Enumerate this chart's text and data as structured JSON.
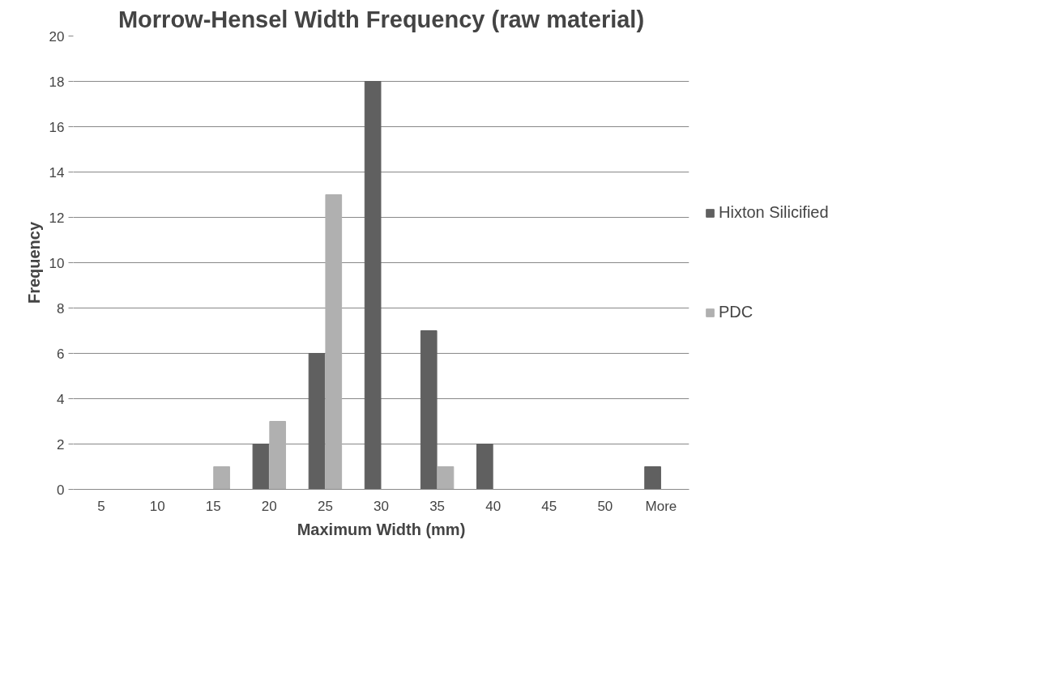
{
  "chart_data": {
    "type": "bar",
    "title": "Morrow-Hensel Width Frequency (raw material)",
    "xlabel": "Maximum Width (mm)",
    "ylabel": "Frequency",
    "categories": [
      "5",
      "10",
      "15",
      "20",
      "25",
      "30",
      "35",
      "40",
      "45",
      "50",
      "More"
    ],
    "series": [
      {
        "name": "Hixton Silicified",
        "color": "#606060",
        "values": [
          0,
          0,
          0,
          2,
          6,
          18,
          7,
          2,
          0,
          0,
          1
        ]
      },
      {
        "name": "PDC",
        "color": "#b0b0b0",
        "values": [
          0,
          0,
          1,
          3,
          13,
          0,
          1,
          0,
          0,
          0,
          0
        ]
      }
    ],
    "ylim": [
      0,
      20
    ],
    "yticks": [
      0,
      2,
      4,
      6,
      8,
      10,
      12,
      14,
      16,
      18,
      20
    ],
    "grid": "y",
    "legend": "right"
  }
}
